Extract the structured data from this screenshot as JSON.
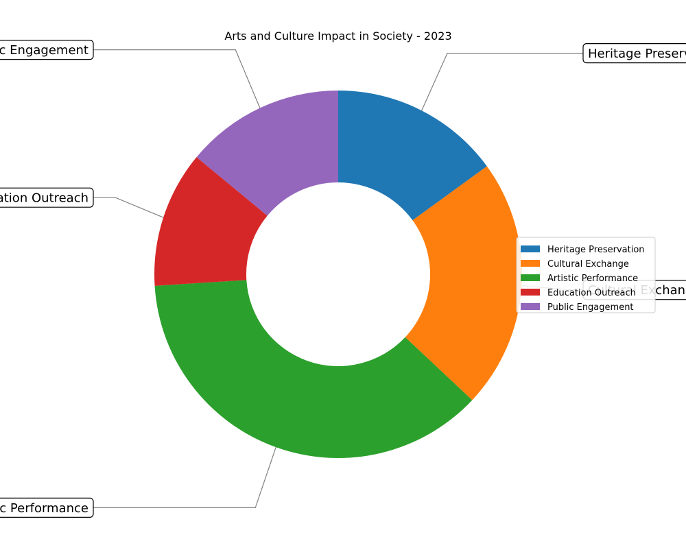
{
  "chart_data": {
    "type": "pie",
    "donut": true,
    "title": "Arts and Culture Impact in Society - 2023",
    "categories": [
      "Heritage Preservation",
      "Cultural Exchange",
      "Artistic Performance",
      "Education Outreach",
      "Public Engagement"
    ],
    "values": [
      15,
      22,
      37,
      12,
      14
    ],
    "colors": [
      "#1f77b4",
      "#ff7f0e",
      "#2ca02c",
      "#d62728",
      "#9467bd"
    ],
    "legend": {
      "position": "center-right",
      "entries": [
        "Heritage Preservation",
        "Cultural Exchange",
        "Artistic Performance",
        "Education Outreach",
        "Public Engagement"
      ]
    },
    "annotations": [
      "Heritage Preservation",
      "Cultural Exchange",
      "Artistic Performance",
      "Education Outreach",
      "Public Engagement"
    ],
    "start_angle_deg": 90,
    "direction": "clockwise"
  }
}
